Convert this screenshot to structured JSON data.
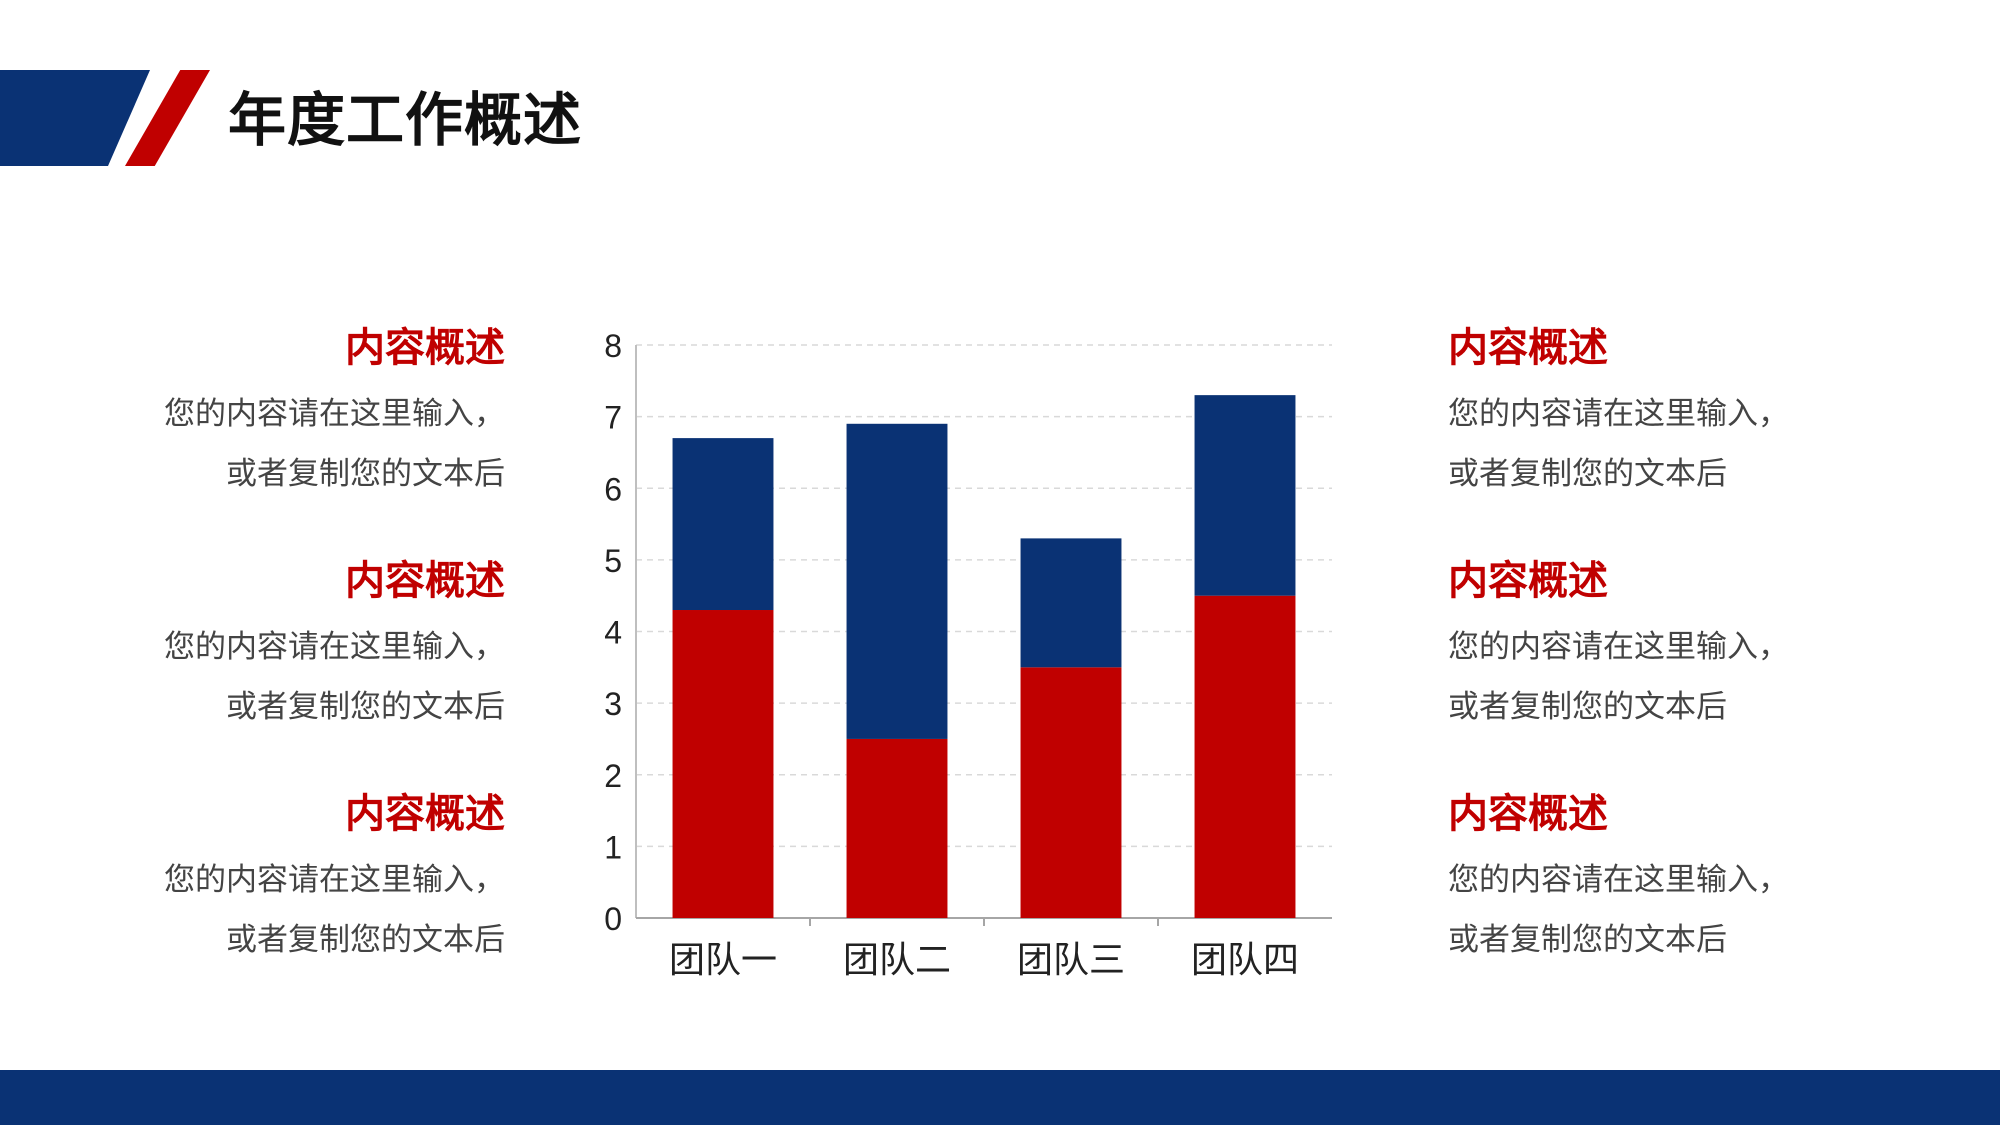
{
  "page": {
    "title": "年度工作概述"
  },
  "colors": {
    "primary": "#0a3274",
    "accent": "#c00000",
    "text": "#444444"
  },
  "left_blocks": [
    {
      "title": "内容概述",
      "lines": [
        "您的内容请在这里输入，",
        "或者复制您的文本后"
      ]
    },
    {
      "title": "内容概述",
      "lines": [
        "您的内容请在这里输入，",
        "或者复制您的文本后"
      ]
    },
    {
      "title": "内容概述",
      "lines": [
        "您的内容请在这里输入，",
        "或者复制您的文本后"
      ]
    }
  ],
  "right_blocks": [
    {
      "title": "内容概述",
      "lines": [
        "您的内容请在这里输入，",
        "或者复制您的文本后"
      ]
    },
    {
      "title": "内容概述",
      "lines": [
        "您的内容请在这里输入，",
        "或者复制您的文本后"
      ]
    },
    {
      "title": "内容概述",
      "lines": [
        "您的内容请在这里输入，",
        "或者复制您的文本后"
      ]
    }
  ],
  "chart_data": {
    "type": "bar",
    "stacked": true,
    "categories": [
      "团队一",
      "团队二",
      "团队三",
      "团队四"
    ],
    "series": [
      {
        "values": [
          4.3,
          2.5,
          3.5,
          4.5
        ],
        "color": "#c00000"
      },
      {
        "values": [
          2.4,
          4.4,
          1.8,
          2.8
        ],
        "color": "#0a3274"
      }
    ],
    "ylim": [
      0,
      8
    ],
    "yticks": [
      0,
      1,
      2,
      3,
      4,
      5,
      6,
      7,
      8
    ],
    "grid": true,
    "title": "",
    "xlabel": "",
    "ylabel": ""
  }
}
